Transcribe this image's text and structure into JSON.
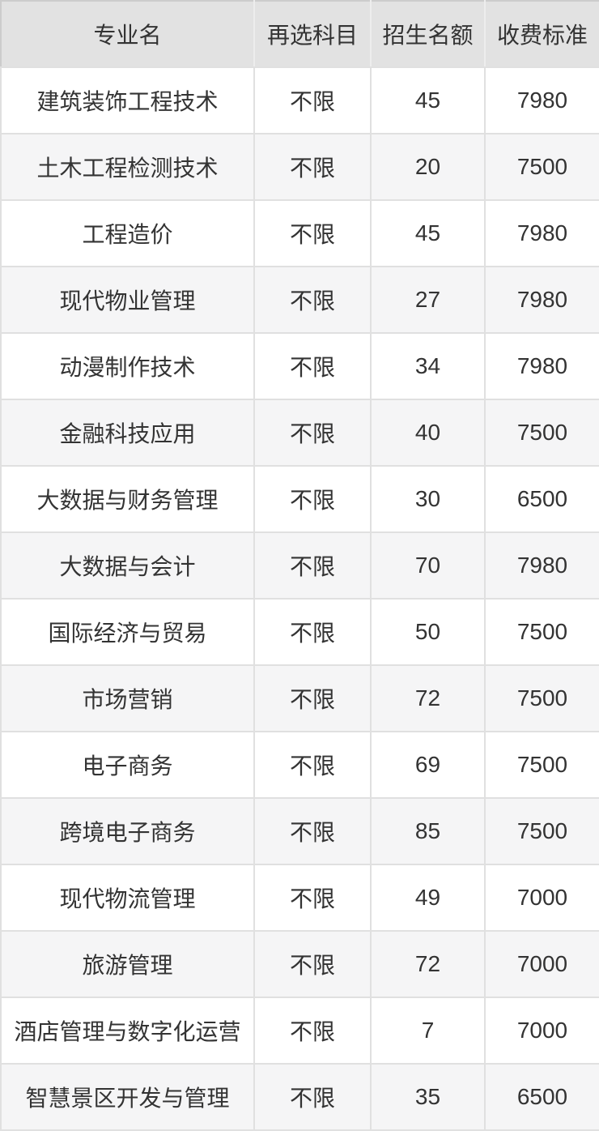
{
  "table": {
    "columns": [
      {
        "key": "major",
        "label": "专业名"
      },
      {
        "key": "subjects",
        "label": "再选科目"
      },
      {
        "key": "quota",
        "label": "招生名额"
      },
      {
        "key": "fee",
        "label": "收费标准"
      }
    ],
    "rows": [
      {
        "major": "建筑装饰工程技术",
        "subjects": "不限",
        "quota": "45",
        "fee": "7980"
      },
      {
        "major": "土木工程检测技术",
        "subjects": "不限",
        "quota": "20",
        "fee": "7500"
      },
      {
        "major": "工程造价",
        "subjects": "不限",
        "quota": "45",
        "fee": "7980"
      },
      {
        "major": "现代物业管理",
        "subjects": "不限",
        "quota": "27",
        "fee": "7980"
      },
      {
        "major": "动漫制作技术",
        "subjects": "不限",
        "quota": "34",
        "fee": "7980"
      },
      {
        "major": "金融科技应用",
        "subjects": "不限",
        "quota": "40",
        "fee": "7500"
      },
      {
        "major": "大数据与财务管理",
        "subjects": "不限",
        "quota": "30",
        "fee": "6500"
      },
      {
        "major": "大数据与会计",
        "subjects": "不限",
        "quota": "70",
        "fee": "7980"
      },
      {
        "major": "国际经济与贸易",
        "subjects": "不限",
        "quota": "50",
        "fee": "7500"
      },
      {
        "major": "市场营销",
        "subjects": "不限",
        "quota": "72",
        "fee": "7500"
      },
      {
        "major": "电子商务",
        "subjects": "不限",
        "quota": "69",
        "fee": "7500"
      },
      {
        "major": "跨境电子商务",
        "subjects": "不限",
        "quota": "85",
        "fee": "7500"
      },
      {
        "major": "现代物流管理",
        "subjects": "不限",
        "quota": "49",
        "fee": "7000"
      },
      {
        "major": "旅游管理",
        "subjects": "不限",
        "quota": "72",
        "fee": "7000"
      },
      {
        "major": "酒店管理与数字化运营",
        "subjects": "不限",
        "quota": "7",
        "fee": "7000"
      },
      {
        "major": "智慧景区开发与管理",
        "subjects": "不限",
        "quota": "35",
        "fee": "6500"
      }
    ],
    "colors": {
      "header_bg": "#e2e2e2",
      "header_divider": "#ededed",
      "row_bg": "#ffffff",
      "row_alt_bg": "#f5f5f6",
      "border": "#e0e0e0",
      "outer_border": "#cccccc",
      "text": "#333333"
    }
  }
}
